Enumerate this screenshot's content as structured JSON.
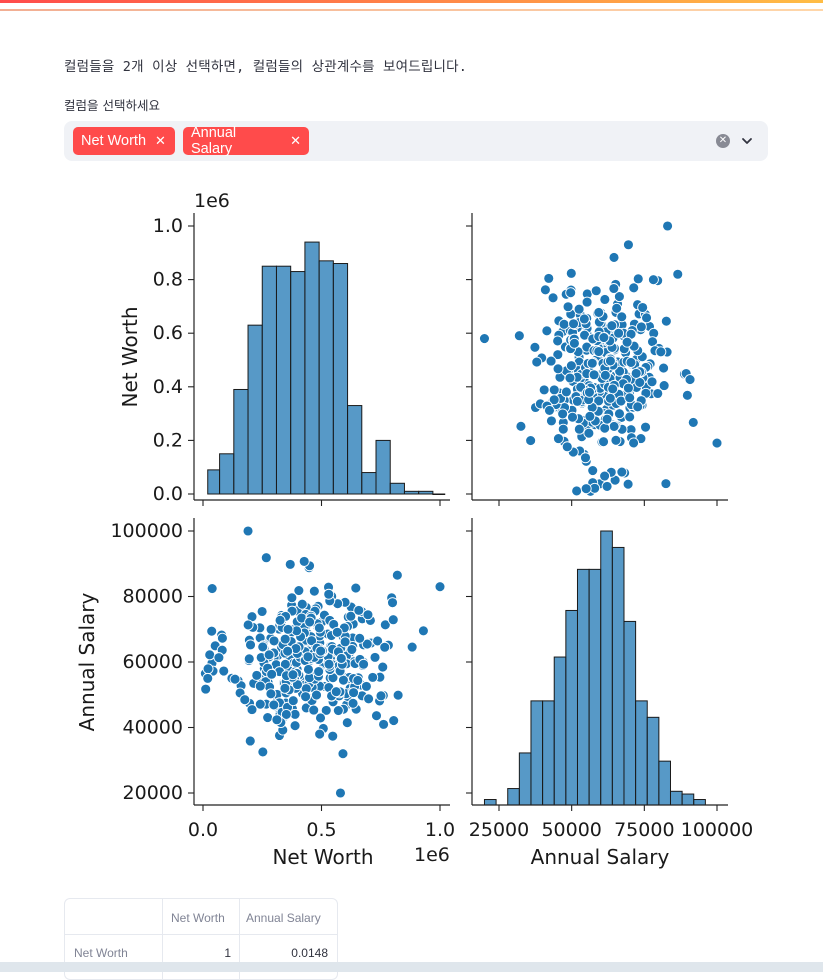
{
  "intro_text": "컬럼들을 2개 이상 선택하면, 컬럼들의 상관계수를 보여드립니다.",
  "multiselect": {
    "label": "컬럼을 선택하세요",
    "tags": [
      "Net Worth",
      "Annual Salary"
    ],
    "clear_icon": "clear-x-circle-icon",
    "dropdown_icon": "chevron-down-icon"
  },
  "chart_data": {
    "type": "pairplot",
    "color": "#1f77b4",
    "variables": [
      "Net Worth",
      "Annual Salary"
    ],
    "net_worth_offset_label": "1e6",
    "net_worth_ticks": [
      "0.0",
      "0.2",
      "0.4",
      "0.6",
      "0.8",
      "1.0"
    ],
    "net_worth_x_ticks": [
      "0.0",
      "0.5",
      "1.0"
    ],
    "annual_salary_ticks": [
      "20000",
      "40000",
      "60000",
      "80000",
      "100000"
    ],
    "annual_salary_x_ticks": [
      "25000",
      "50000",
      "75000",
      "100000"
    ],
    "xlabels": [
      "Net Worth",
      "Annual Salary"
    ],
    "ylabels": [
      "Net Worth",
      "Annual Salary"
    ],
    "hist_net_worth": {
      "bin_edges_1e6": [
        0.02,
        0.07,
        0.13,
        0.19,
        0.25,
        0.31,
        0.37,
        0.43,
        0.49,
        0.55,
        0.61,
        0.67,
        0.73,
        0.79,
        0.85,
        0.91,
        0.97,
        1.02
      ],
      "counts_relative": [
        0.09,
        0.15,
        0.39,
        0.63,
        0.85,
        0.85,
        0.83,
        0.94,
        0.87,
        0.86,
        0.33,
        0.08,
        0.2,
        0.04,
        0.01,
        0.01,
        0.0
      ]
    },
    "hist_annual_salary": {
      "bin_edges": [
        20000,
        24000,
        28000,
        32000,
        36000,
        40000,
        44000,
        48000,
        52000,
        56000,
        60000,
        64000,
        68000,
        72000,
        76000,
        80000,
        84000,
        88000,
        92000,
        96000,
        100000
      ],
      "counts_relative": [
        0.02,
        0.0,
        0.06,
        0.19,
        0.38,
        0.38,
        0.54,
        0.71,
        0.86,
        0.86,
        1.0,
        0.94,
        0.67,
        0.38,
        0.32,
        0.16,
        0.05,
        0.04,
        0.02,
        0.0
      ]
    },
    "scatter_outliers": [
      {
        "net_worth_1e6": 1.0,
        "annual_salary": 83000
      },
      {
        "net_worth_1e6": 0.19,
        "annual_salary": 100000
      },
      {
        "net_worth_1e6": 0.58,
        "annual_salary": 20000
      },
      {
        "net_worth_1e6": 0.02,
        "annual_salary": 55000
      },
      {
        "net_worth_1e6": 0.82,
        "annual_salary": 86500
      }
    ],
    "scatter_center": {
      "net_worth_1e6": 0.45,
      "annual_salary": 61000
    },
    "scatter_spread": {
      "net_worth_1e6": 0.17,
      "annual_salary": 11000
    },
    "n_points": 380
  },
  "corr_table": {
    "headers": [
      "",
      "Net Worth",
      "Annual Salary"
    ],
    "rows": [
      {
        "label": "Net Worth",
        "values": [
          "1",
          "0.0148"
        ]
      }
    ]
  }
}
